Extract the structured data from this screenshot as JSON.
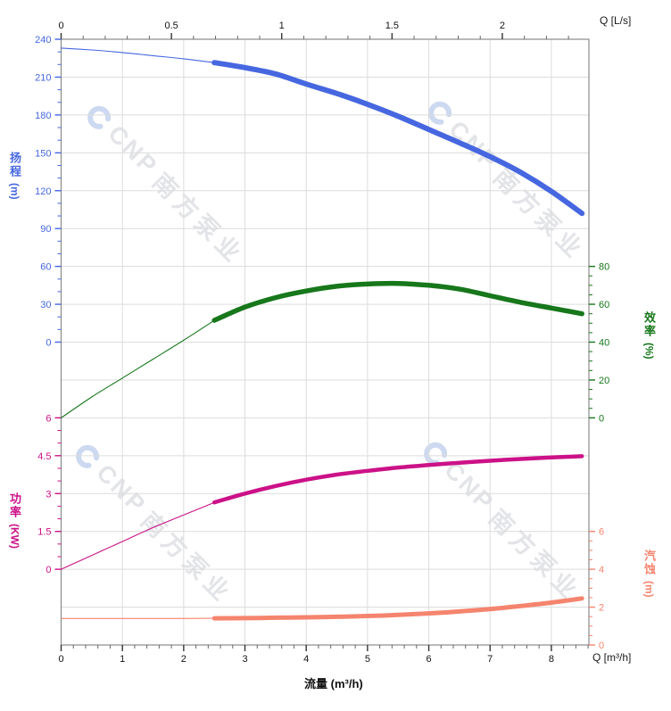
{
  "chart_data": {
    "type": "line",
    "title": "",
    "x_bottom": {
      "label": "Q [m³/h]",
      "axis_title": "流量 (m³/h)",
      "ticks": [
        0,
        1,
        2,
        3,
        4,
        5,
        6,
        7,
        8
      ],
      "minor_step": 0.2,
      "range": [
        0,
        8.61
      ]
    },
    "x_top": {
      "label": "Q [L/s]",
      "ticks": [
        0,
        0.5,
        1,
        1.5,
        2
      ],
      "minor_step": 0.1,
      "range": [
        0,
        2.39
      ]
    },
    "grid": true,
    "legend": "none",
    "y_axes": {
      "head": {
        "title": "扬程",
        "unit": "(m)",
        "color": "#4667E0",
        "side": "left",
        "ticks": [
          0,
          30,
          60,
          90,
          120,
          150,
          180,
          210,
          240
        ],
        "minor_step": 10,
        "range": [
          0,
          240
        ]
      },
      "efficiency": {
        "title": "效率",
        "unit": "(%)",
        "color": "#17771B",
        "side": "right",
        "ticks": [
          0,
          20,
          40,
          60,
          80
        ],
        "minor_step": 5,
        "range": [
          0,
          80
        ]
      },
      "power": {
        "title": "功率",
        "unit": "(KW)",
        "color": "#CC1188",
        "side": "left",
        "ticks": [
          0,
          1.5,
          3,
          4.5,
          6
        ],
        "minor_step": 0.5,
        "range": [
          0,
          6
        ]
      },
      "npsh": {
        "title": "汽蚀",
        "unit": "(m)",
        "color": "#F5846E",
        "side": "right",
        "ticks": [
          0,
          2,
          4,
          6
        ],
        "minor_step": 0.5,
        "range": [
          0,
          6
        ]
      }
    },
    "series": [
      {
        "name": "head-curve",
        "axis": "head",
        "color": "#4667E0",
        "thin_until": 2.5,
        "points": [
          [
            0,
            233
          ],
          [
            0.5,
            231.5
          ],
          [
            1,
            229.5
          ],
          [
            1.5,
            227
          ],
          [
            2,
            224.5
          ],
          [
            2.5,
            221.5
          ],
          [
            3,
            217.5
          ],
          [
            3.5,
            212.5
          ],
          [
            4,
            204.5
          ],
          [
            4.5,
            197
          ],
          [
            5,
            188.5
          ],
          [
            5.5,
            179
          ],
          [
            6,
            168.5
          ],
          [
            6.5,
            158
          ],
          [
            7,
            147
          ],
          [
            7.5,
            134.5
          ],
          [
            8,
            119.5
          ],
          [
            8.5,
            102
          ]
        ]
      },
      {
        "name": "efficiency-curve",
        "axis": "efficiency",
        "color": "#17771B",
        "thin_until": 2.5,
        "points": [
          [
            0,
            0
          ],
          [
            0.5,
            11
          ],
          [
            1,
            21
          ],
          [
            1.5,
            31
          ],
          [
            2,
            41
          ],
          [
            2.5,
            51.5
          ],
          [
            3,
            58.5
          ],
          [
            3.5,
            63.5
          ],
          [
            4,
            67
          ],
          [
            4.5,
            69.5
          ],
          [
            5,
            70.7
          ],
          [
            5.5,
            71
          ],
          [
            6,
            70
          ],
          [
            6.5,
            68
          ],
          [
            7,
            64.5
          ],
          [
            7.5,
            61
          ],
          [
            8,
            58
          ],
          [
            8.5,
            55
          ]
        ]
      },
      {
        "name": "power-curve",
        "axis": "power",
        "color": "#CC1188",
        "thin_until": 2.5,
        "points": [
          [
            0,
            0
          ],
          [
            0.5,
            0.55
          ],
          [
            1,
            1.1
          ],
          [
            1.5,
            1.65
          ],
          [
            2,
            2.15
          ],
          [
            2.5,
            2.65
          ],
          [
            3,
            3.0
          ],
          [
            3.5,
            3.3
          ],
          [
            4,
            3.55
          ],
          [
            4.5,
            3.75
          ],
          [
            5,
            3.9
          ],
          [
            5.5,
            4.03
          ],
          [
            6,
            4.13
          ],
          [
            6.5,
            4.22
          ],
          [
            7,
            4.3
          ],
          [
            7.5,
            4.37
          ],
          [
            8,
            4.43
          ],
          [
            8.5,
            4.48
          ]
        ]
      },
      {
        "name": "npsh-curve",
        "axis": "npsh",
        "color": "#F5846E",
        "thin_until": 2.5,
        "points": [
          [
            0,
            1.4
          ],
          [
            1,
            1.4
          ],
          [
            2,
            1.4
          ],
          [
            2.5,
            1.41
          ],
          [
            3,
            1.42
          ],
          [
            3.5,
            1.44
          ],
          [
            4,
            1.46
          ],
          [
            4.5,
            1.49
          ],
          [
            5,
            1.53
          ],
          [
            5.5,
            1.59
          ],
          [
            6,
            1.67
          ],
          [
            6.5,
            1.77
          ],
          [
            7,
            1.9
          ],
          [
            7.5,
            2.06
          ],
          [
            8,
            2.24
          ],
          [
            8.5,
            2.46
          ]
        ]
      }
    ]
  },
  "watermark": {
    "cnp": "CNP",
    "brand": "南方泵业"
  },
  "colors": {
    "grid": "#dcdcdc",
    "border": "#8a8a8a",
    "tick_dark": "#333333",
    "watermark_text": "#e3e4e8",
    "watermark_logo": "#ccd9f0"
  }
}
